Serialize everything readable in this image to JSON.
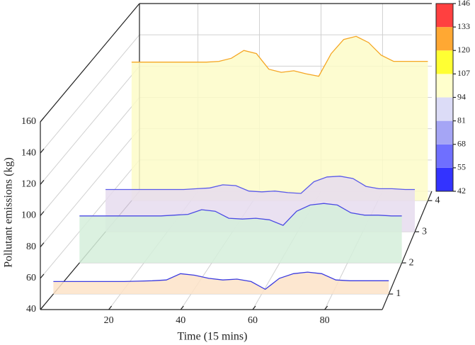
{
  "chart_data": {
    "type": "waterfall3d",
    "xlabel": "Time (15 mins)",
    "zlabel": "Pollutant emissions (kg)",
    "x": [
      1,
      5,
      9,
      13,
      17,
      21,
      25,
      29,
      33,
      37,
      41,
      45,
      49,
      53,
      57,
      61,
      65,
      69,
      73,
      77,
      81,
      85,
      89,
      93,
      96
    ],
    "xlim": [
      1,
      96
    ],
    "xticks": [
      20,
      40,
      60,
      80
    ],
    "ylim": [
      0.5,
      4.3
    ],
    "yticks": [
      1,
      2,
      3,
      4
    ],
    "zlim": [
      40,
      160
    ],
    "zticks": [
      40,
      60,
      80,
      100,
      120,
      140,
      160
    ],
    "grid": true,
    "series": [
      {
        "color": "#3b3be0",
        "fill": "#fde3c8",
        "values": [
          48,
          48,
          48,
          48,
          48,
          48,
          48.2,
          48.5,
          49,
          53,
          52,
          50,
          49,
          49.5,
          48,
          43,
          50,
          53,
          54,
          53,
          49,
          48.5,
          48.5,
          48.5,
          48.5
        ]
      },
      {
        "color": "#4a4ae4",
        "fill": "#d5eedb",
        "values": [
          70,
          70,
          70,
          70,
          70,
          70,
          70,
          70.5,
          71,
          74,
          73,
          68.5,
          68,
          68.5,
          67.5,
          64,
          73,
          77,
          78,
          77,
          72,
          70.5,
          70.5,
          70,
          70
        ]
      },
      {
        "color": "#5a5aea",
        "fill": "#e6dcee",
        "values": [
          67,
          67,
          67,
          67,
          67,
          67,
          67,
          67.5,
          68,
          70,
          69.5,
          66,
          65.5,
          66,
          65,
          64.5,
          72,
          75,
          75.5,
          74,
          69,
          67.5,
          67.5,
          67,
          67
        ]
      },
      {
        "color": "#f5a623",
        "fill": "#fdfbc8",
        "values": [
          128.5,
          128.5,
          128.5,
          128.5,
          128.5,
          128.5,
          128.5,
          129,
          131,
          136,
          134,
          124,
          122,
          123,
          121,
          119.5,
          134,
          143,
          145,
          141,
          133,
          129,
          129,
          129,
          129
        ]
      }
    ],
    "colorbar": {
      "ticks": [
        42,
        55,
        68,
        81,
        94,
        107,
        120,
        133,
        146
      ],
      "colors": [
        "#3333ff",
        "#6f6fff",
        "#a5a5f5",
        "#dcdcf7",
        "#ffffcc",
        "#ffff33",
        "#ffa833",
        "#ff4040"
      ]
    }
  }
}
